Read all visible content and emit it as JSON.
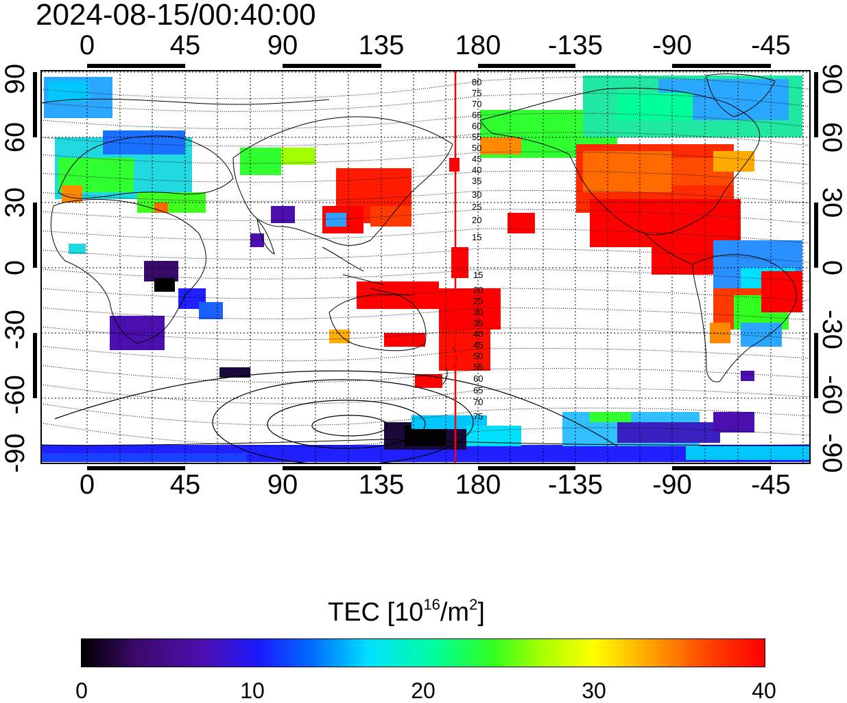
{
  "timestamp": "2024-08-15/00:40:00",
  "lon_ticks": [
    "0",
    "45",
    "90",
    "135",
    "180",
    "-135",
    "-90",
    "-45"
  ],
  "lat_ticks": [
    "90",
    "60",
    "30",
    "0",
    "-30",
    "-60",
    "-90"
  ],
  "magnetic_latitude_labels_north": [
    "80",
    "75",
    "70",
    "65",
    "60",
    "55",
    "50",
    "45",
    "40",
    "35",
    "30",
    "25",
    "20",
    "15"
  ],
  "magnetic_latitude_labels_south": [
    "15",
    "20",
    "25",
    "30",
    "35",
    "40",
    "45",
    "50",
    "55",
    "60",
    "65",
    "70",
    "75"
  ],
  "colorbar": {
    "title_main": "TEC  [10",
    "title_exp": "16",
    "title_unit": "/m",
    "title_unit_exp": "2",
    "title_close": "]",
    "tick_labels": [
      "0",
      "10",
      "20",
      "30",
      "40"
    ],
    "range": [
      0,
      40
    ]
  },
  "map": {
    "projection": "equirectangular",
    "lon_range": [
      -21,
      320
    ],
    "lat_range": [
      -92,
      92
    ],
    "current_lon_line": 172,
    "current_lon_color": "#ff0000"
  }
}
